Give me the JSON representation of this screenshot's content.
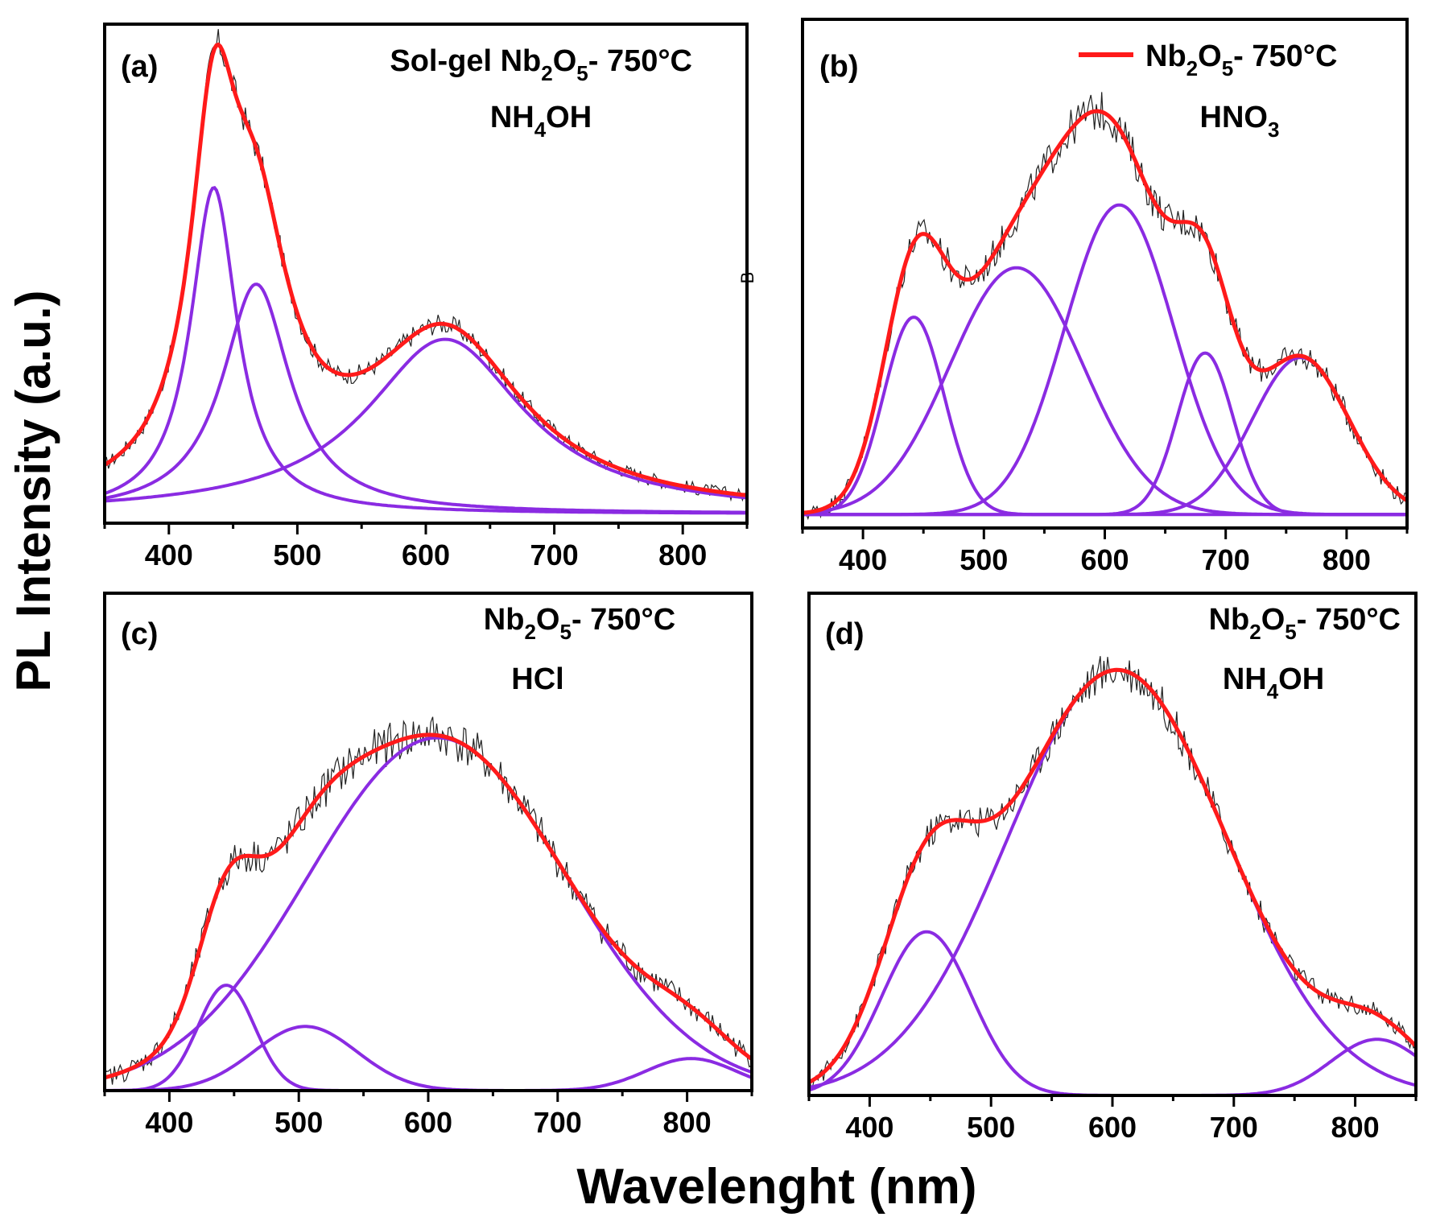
{
  "figure": {
    "ylabel": "PL Intensity (a.u.)",
    "xlabel": "Wavelenght (nm)",
    "stray_mark": "B",
    "colors": {
      "envelope": "#ff1a1a",
      "component": "#8a2be2",
      "raw": "#222222",
      "axes": "#000000"
    }
  },
  "chart_data": [
    {
      "id": "a",
      "type": "line",
      "panel_label": "(a)",
      "annotation": {
        "line1": [
          "Sol-gel Nb",
          "2",
          "O",
          "5",
          "- 750°C"
        ],
        "line2": [
          "NH",
          "4",
          "OH"
        ]
      },
      "legend": null,
      "xlim": [
        350,
        850
      ],
      "ylim": [
        0,
        1
      ],
      "xticks": [
        400,
        500,
        600,
        700,
        800
      ],
      "xlabel": "Wavelenght (nm)",
      "ylabel": "PL Intensity (a.u.)",
      "components": [
        {
          "center": 435,
          "amplitude": 0.71,
          "width": 22,
          "shape": "lorentzian"
        },
        {
          "center": 468,
          "amplitude": 0.5,
          "width": 32,
          "shape": "lorentzian"
        },
        {
          "center": 615,
          "amplitude": 0.38,
          "width": 75,
          "shape": "lorentzian"
        }
      ],
      "raw_noise": 0.022
    },
    {
      "id": "b",
      "type": "line",
      "panel_label": "(b)",
      "annotation": {
        "line1": [
          "Nb",
          "2",
          "O",
          "5",
          "- 750°C"
        ],
        "line2": [
          "HNO",
          "3",
          ""
        ]
      },
      "legend": "top-right",
      "xlim": [
        350,
        850
      ],
      "ylim": [
        0,
        1
      ],
      "xticks": [
        400,
        500,
        600,
        700,
        800
      ],
      "xlabel": "Wavelenght (nm)",
      "ylabel": "PL Intensity (a.u.)",
      "components": [
        {
          "center": 442,
          "amplitude": 0.44,
          "width": 25,
          "shape": "gaussian"
        },
        {
          "center": 527,
          "amplitude": 0.55,
          "width": 55,
          "shape": "gaussian"
        },
        {
          "center": 612,
          "amplitude": 0.69,
          "width": 45,
          "shape": "gaussian"
        },
        {
          "center": 683,
          "amplitude": 0.36,
          "width": 23,
          "shape": "gaussian"
        },
        {
          "center": 762,
          "amplitude": 0.35,
          "width": 40,
          "shape": "gaussian"
        }
      ],
      "raw_noise": 0.03
    },
    {
      "id": "c",
      "type": "line",
      "panel_label": "(c)",
      "annotation": {
        "line1": [
          "Nb",
          "2",
          "O",
          "5",
          "- 750°C"
        ],
        "line2": [
          "HCl",
          "",
          ""
        ]
      },
      "legend": null,
      "xlim": [
        350,
        850
      ],
      "ylim": [
        0,
        1
      ],
      "xticks": [
        400,
        500,
        600,
        700,
        800
      ],
      "xlabel": "Wavelenght (nm)",
      "ylabel": "PL Intensity (a.u.)",
      "components": [
        {
          "center": 444,
          "amplitude": 0.23,
          "width": 22,
          "shape": "gaussian"
        },
        {
          "center": 505,
          "amplitude": 0.14,
          "width": 40,
          "shape": "gaussian"
        },
        {
          "center": 607,
          "amplitude": 0.77,
          "width": 100,
          "shape": "gaussian"
        },
        {
          "center": 803,
          "amplitude": 0.07,
          "width": 35,
          "shape": "gaussian"
        }
      ],
      "raw_noise": 0.035
    },
    {
      "id": "d",
      "type": "line",
      "panel_label": "(d)",
      "annotation": {
        "line1": [
          "Nb",
          "2",
          "O",
          "5",
          "- 750°C"
        ],
        "line2": [
          "NH",
          "4",
          "OH"
        ]
      },
      "legend": null,
      "xlim": [
        350,
        850
      ],
      "ylim": [
        0,
        1
      ],
      "xticks": [
        400,
        500,
        600,
        700,
        800
      ],
      "xlabel": "Wavelenght (nm)",
      "ylabel": "PL Intensity (a.u.)",
      "components": [
        {
          "center": 447,
          "amplitude": 0.35,
          "width": 37,
          "shape": "gaussian"
        },
        {
          "center": 604,
          "amplitude": 0.91,
          "width": 90,
          "shape": "gaussian"
        },
        {
          "center": 818,
          "amplitude": 0.12,
          "width": 38,
          "shape": "gaussian"
        }
      ],
      "raw_noise": 0.028
    }
  ]
}
